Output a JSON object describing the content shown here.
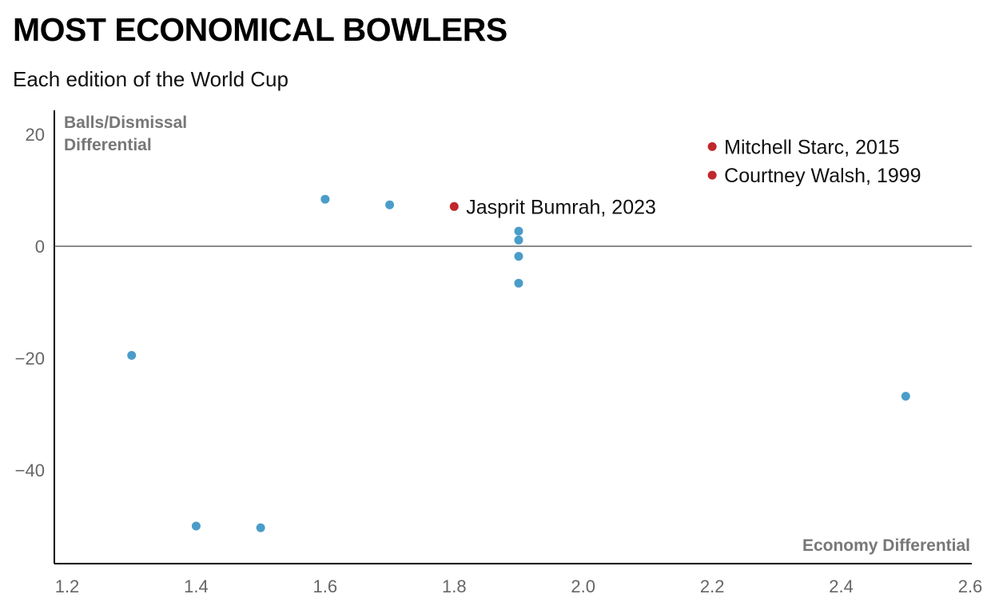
{
  "title": "MOST ECONOMICAL BOWLERS",
  "subtitle": "Each edition of the World Cup",
  "colors": {
    "regular": "#4a9dc9",
    "highlight": "#c0272d",
    "axis": "#000000",
    "zero_line": "#666666"
  },
  "chart_data": {
    "type": "scatter",
    "xlabel": "Economy Differential",
    "ylabel": [
      "Balls/Dismissal",
      "Differential"
    ],
    "xlim": [
      1.2,
      2.6
    ],
    "ylim": [
      -56,
      24
    ],
    "x_ticks": [
      "1.2",
      "1.4",
      "1.6",
      "1.8",
      "2.0",
      "2.2",
      "2.4",
      "2.6"
    ],
    "y_ticks": [
      "20",
      "0",
      "−20",
      "−40"
    ],
    "grid": false,
    "zero_line": true,
    "points": [
      {
        "x": 1.3,
        "y": -19.5,
        "highlight": false
      },
      {
        "x": 1.4,
        "y": -50,
        "highlight": false
      },
      {
        "x": 1.5,
        "y": -50.3,
        "highlight": false
      },
      {
        "x": 1.6,
        "y": 8.4,
        "highlight": false
      },
      {
        "x": 1.7,
        "y": 7.4,
        "highlight": false
      },
      {
        "x": 1.8,
        "y": 7.1,
        "highlight": true,
        "label": "Jasprit Bumrah, 2023"
      },
      {
        "x": 1.9,
        "y": 2.7,
        "highlight": false
      },
      {
        "x": 1.9,
        "y": 1.1,
        "highlight": false
      },
      {
        "x": 1.9,
        "y": -1.8,
        "highlight": false
      },
      {
        "x": 1.9,
        "y": -6.6,
        "highlight": false
      },
      {
        "x": 2.2,
        "y": 17.8,
        "highlight": true,
        "label": "Mitchell Starc, 2015"
      },
      {
        "x": 2.2,
        "y": 12.7,
        "highlight": true,
        "label": "Courtney Walsh, 1999"
      },
      {
        "x": 2.5,
        "y": -26.8,
        "highlight": false
      }
    ]
  }
}
